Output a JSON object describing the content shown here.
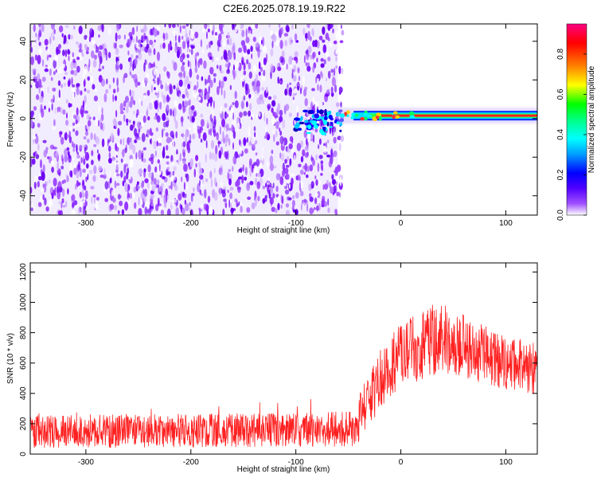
{
  "figure": {
    "title": "C2E6.2025.078.19.19.R22"
  },
  "chart_data": [
    {
      "type": "heatmap",
      "title": "C2E6.2025.078.19.19.R22",
      "xlabel": "Height of straight line (km)",
      "ylabel": "Frequency (Hz)",
      "xlim": [
        -353,
        130
      ],
      "ylim": [
        -50,
        49
      ],
      "xticks": [
        -300,
        -200,
        -100,
        0,
        100
      ],
      "yticks": [
        -40,
        -20,
        0,
        20,
        40
      ],
      "colorbar": {
        "label": "Normalized spectral amplitude",
        "range": [
          0,
          0.95
        ],
        "ticks": [
          0.0,
          0.2,
          0.4,
          0.6,
          0.8
        ],
        "colormap": [
          "#ffffff",
          "#7b00ff",
          "#0000ff",
          "#00ffff",
          "#00ff00",
          "#ffff00",
          "#ff8000",
          "#ff0000",
          "#ff0080"
        ]
      },
      "features": {
        "noise_region_x": [
          -353,
          -60
        ],
        "noise_color": "#7b00ff",
        "signal_line": {
          "x_start": -60,
          "x_end": 130,
          "frequency_hz": 1.5,
          "amplitude": 0.9
        }
      },
      "grid": false
    },
    {
      "type": "line",
      "xlabel": "Height of straight line (km)",
      "ylabel": "SNR (10 * v/v)",
      "xlim": [
        -353,
        130
      ],
      "ylim": [
        0,
        1260
      ],
      "xticks": [
        -300,
        -200,
        -100,
        0,
        100
      ],
      "yticks": [
        0,
        200,
        400,
        600,
        800,
        1000,
        1200
      ],
      "series": [
        {
          "color": "#ff2020",
          "envelope_x": [
            -353,
            -200,
            -100,
            -45,
            -35,
            -20,
            0,
            20,
            35,
            50,
            70,
            100,
            130
          ],
          "envelope_mean": [
            150,
            155,
            160,
            165,
            300,
            500,
            650,
            720,
            760,
            740,
            680,
            600,
            560
          ],
          "envelope_spread": [
            110,
            110,
            110,
            120,
            180,
            200,
            220,
            230,
            240,
            220,
            200,
            180,
            170
          ]
        }
      ],
      "grid": false
    }
  ]
}
